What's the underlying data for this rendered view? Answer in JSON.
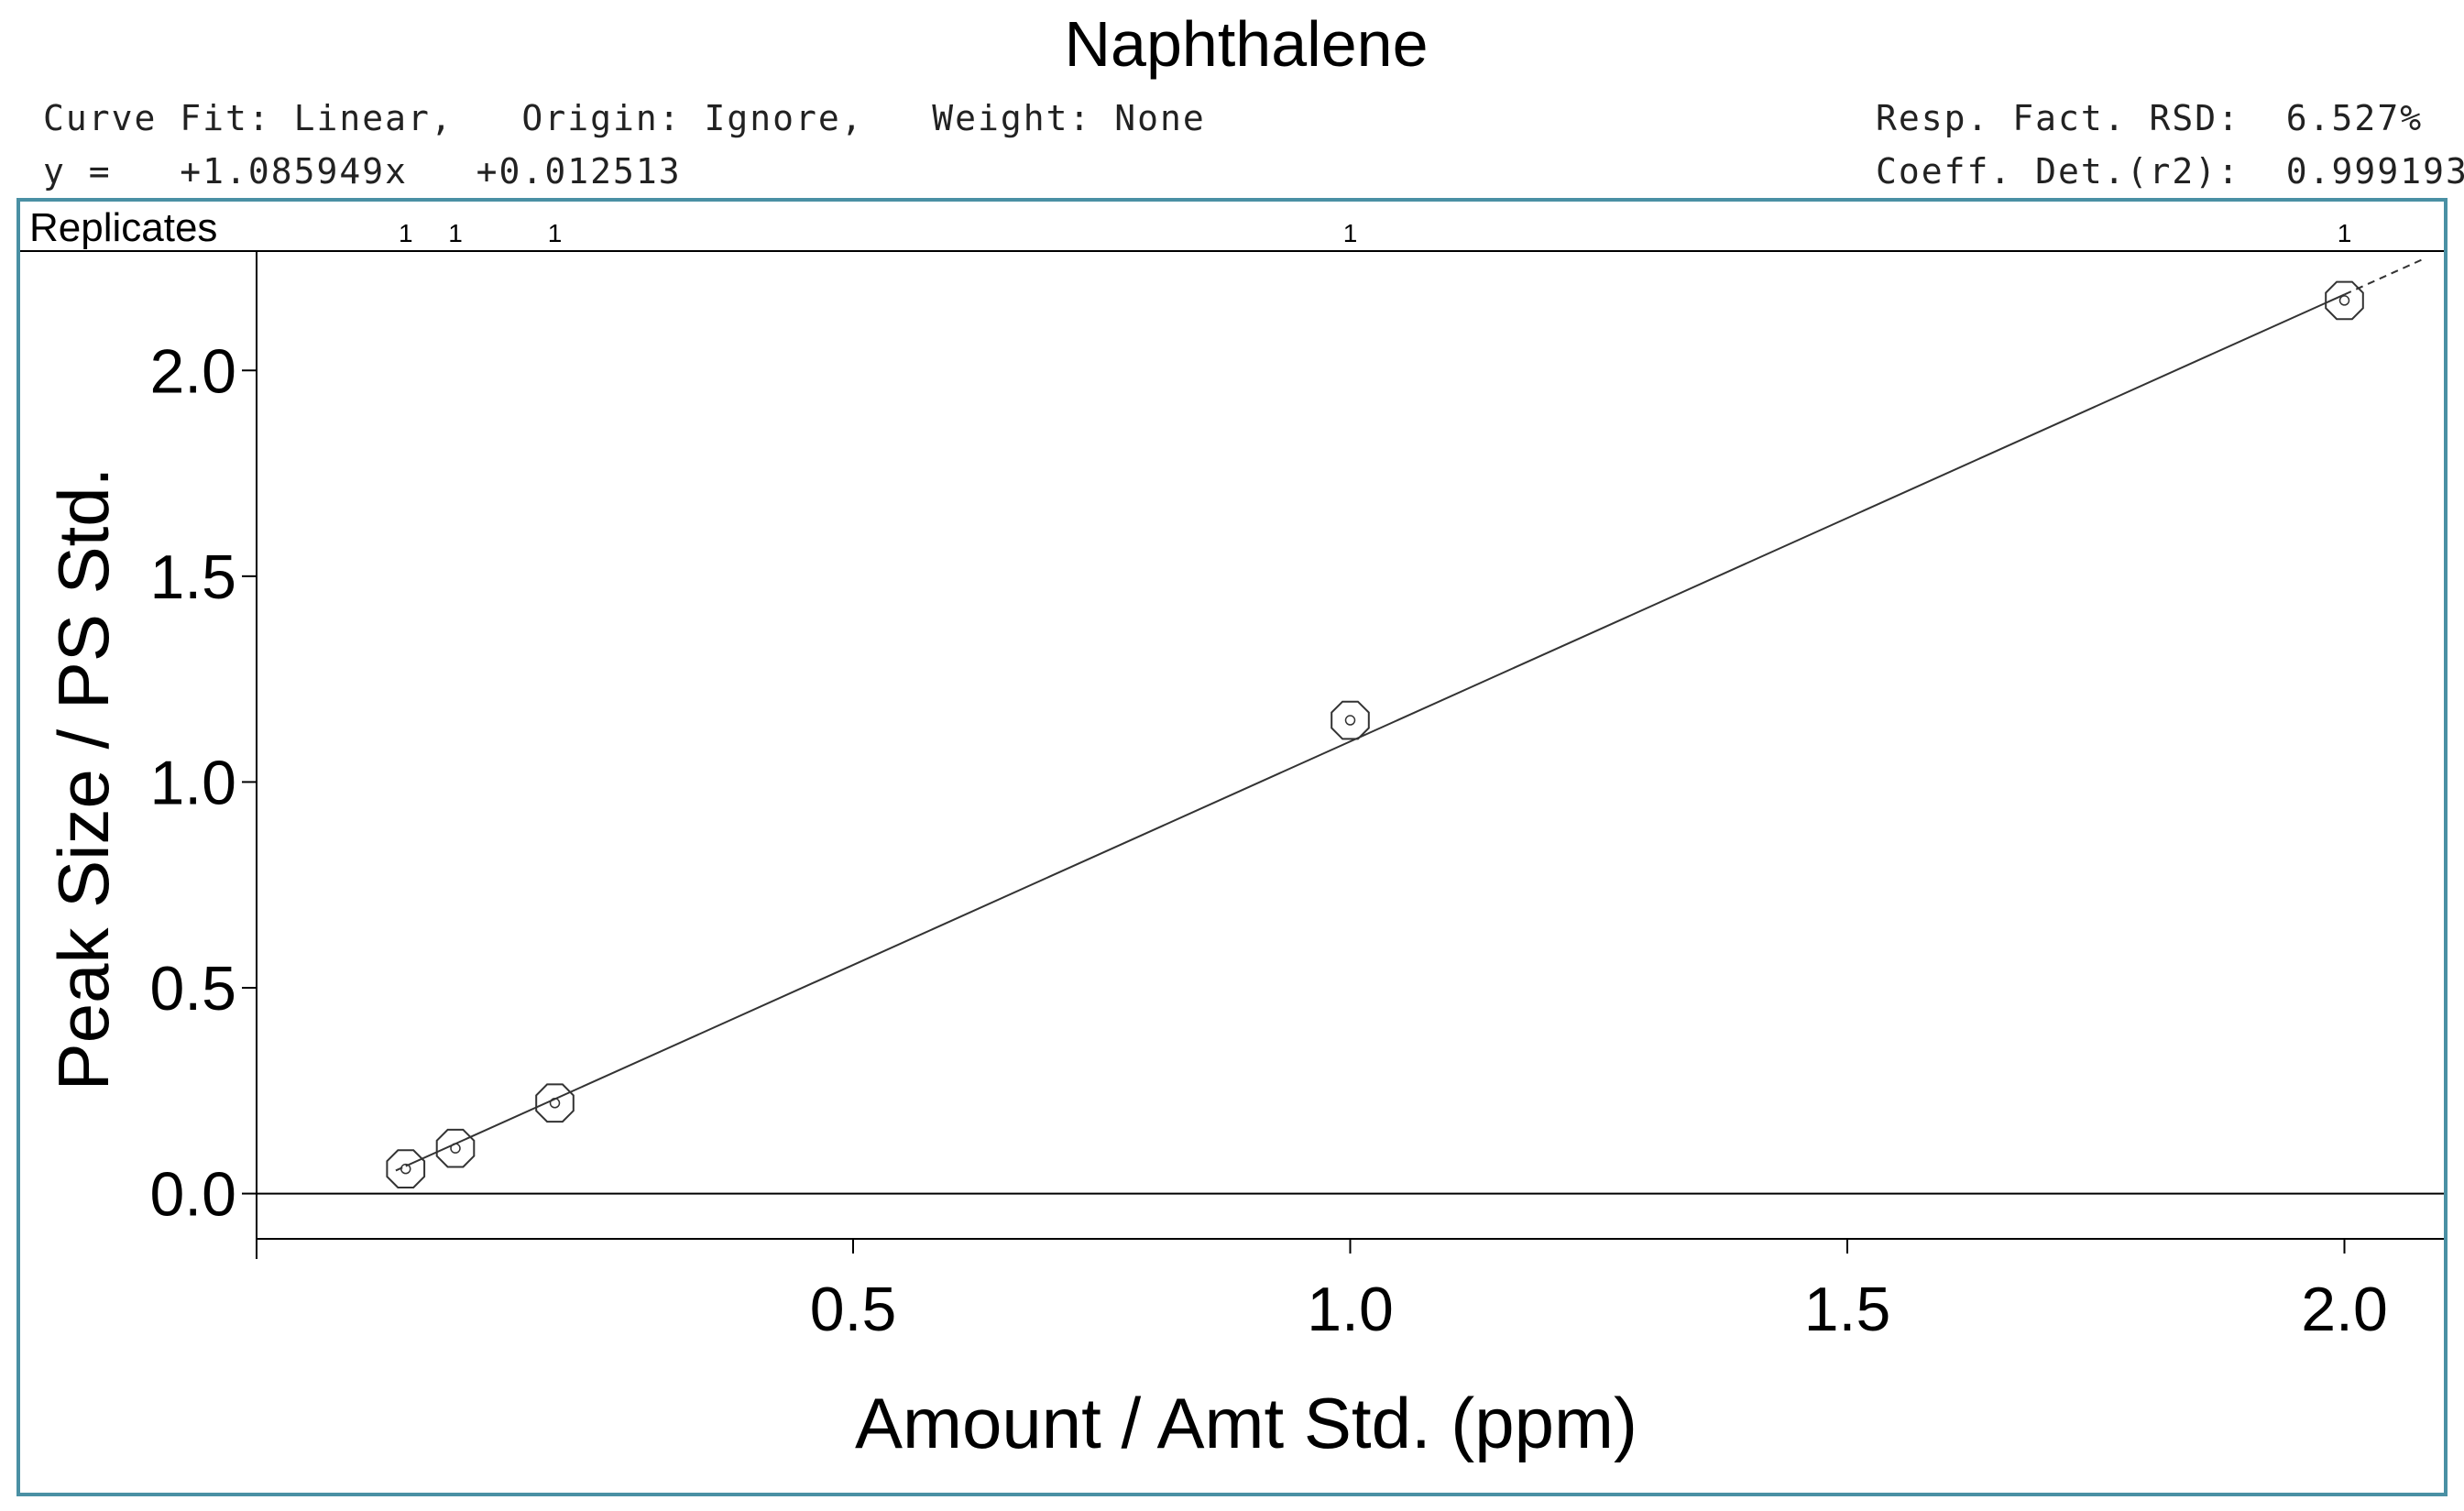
{
  "chart_data": {
    "type": "scatter",
    "title": "Naphthalene",
    "info": {
      "fit_line": "Curve Fit: Linear,   Origin: Ignore,   Weight: None",
      "equation": "y =   +1.085949x   +0.012513",
      "rsd": "Resp. Fact. RSD:  6.527%",
      "r2": "Coeff. Det.(r2):  0.999193"
    },
    "replicates_label": "Replicates",
    "xlabel": "Amount / Amt Std. (ppm)",
    "ylabel": "Peak Size / PS Std.",
    "xlim": [
      -0.1,
      2.1
    ],
    "ylim": [
      -0.11,
      2.29
    ],
    "x_ticks": [
      0.5,
      1.0,
      1.5,
      2.0
    ],
    "x_tick_labels": [
      "0.5",
      "1.0",
      "1.5",
      "2.0"
    ],
    "y_ticks": [
      0.0,
      0.5,
      1.0,
      1.5,
      2.0
    ],
    "y_tick_labels": [
      "0.0",
      "0.5",
      "1.0",
      "1.5",
      "2.0"
    ],
    "fit": {
      "slope": 1.085949,
      "intercept": 0.012513
    },
    "series": [
      {
        "x": [
          0.05,
          0.1,
          0.2,
          1.0,
          2.0
        ],
        "y": [
          0.06,
          0.11,
          0.22,
          1.15,
          2.17
        ],
        "replicates": [
          "1",
          "1",
          "1",
          "1",
          "1"
        ]
      }
    ],
    "colors": {
      "frame": "#4a90a4",
      "marks": "#333333",
      "text": "#000000"
    }
  }
}
